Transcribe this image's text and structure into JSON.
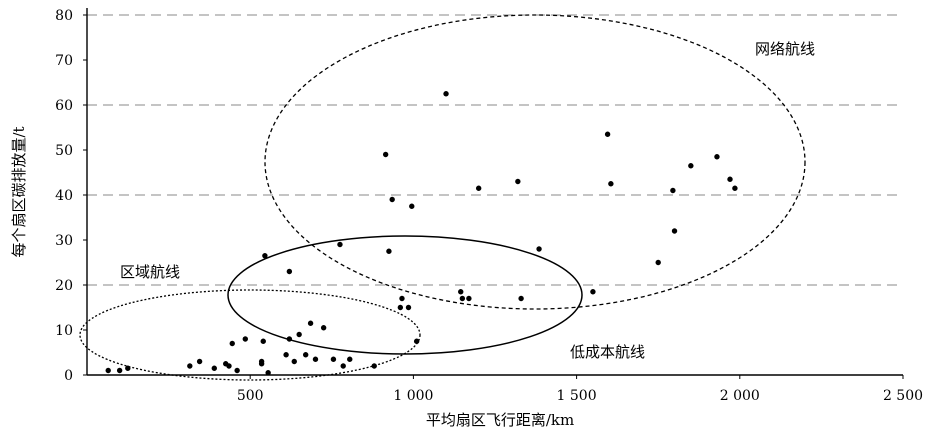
{
  "chart_data": {
    "type": "scatter",
    "xlabel": "平均扇区飞行距离/km",
    "ylabel": "每个扇区碳排放量/t",
    "xlim": [
      0,
      2500
    ],
    "ylim": [
      0,
      80
    ],
    "x_tick_labels": [
      "500",
      "1 000",
      "1 500",
      "2 000",
      "2 500"
    ],
    "y_tick_labels": [
      "0",
      "10",
      "20",
      "30",
      "40",
      "50",
      "60",
      "70",
      "80"
    ],
    "grid": "horizontal dashed at 20, 40, 60, 80",
    "points": [
      {
        "x": 65,
        "y": 1
      },
      {
        "x": 100,
        "y": 1
      },
      {
        "x": 125,
        "y": 1.5
      },
      {
        "x": 315,
        "y": 2
      },
      {
        "x": 345,
        "y": 3
      },
      {
        "x": 390,
        "y": 1.5
      },
      {
        "x": 425,
        "y": 2.5
      },
      {
        "x": 435,
        "y": 2
      },
      {
        "x": 445,
        "y": 7
      },
      {
        "x": 460,
        "y": 1
      },
      {
        "x": 485,
        "y": 8
      },
      {
        "x": 535,
        "y": 2.5
      },
      {
        "x": 535,
        "y": 3
      },
      {
        "x": 540,
        "y": 7.5
      },
      {
        "x": 555,
        "y": 0.5
      },
      {
        "x": 610,
        "y": 4.5
      },
      {
        "x": 620,
        "y": 8
      },
      {
        "x": 635,
        "y": 3
      },
      {
        "x": 650,
        "y": 9
      },
      {
        "x": 670,
        "y": 4.5
      },
      {
        "x": 685,
        "y": 11.5
      },
      {
        "x": 700,
        "y": 3.5
      },
      {
        "x": 725,
        "y": 10.5
      },
      {
        "x": 755,
        "y": 3.5
      },
      {
        "x": 785,
        "y": 2
      },
      {
        "x": 805,
        "y": 3.5
      },
      {
        "x": 880,
        "y": 2
      },
      {
        "x": 545,
        "y": 26.5
      },
      {
        "x": 620,
        "y": 23
      },
      {
        "x": 775,
        "y": 29
      },
      {
        "x": 925,
        "y": 27.5
      },
      {
        "x": 960,
        "y": 15
      },
      {
        "x": 965,
        "y": 17
      },
      {
        "x": 985,
        "y": 15
      },
      {
        "x": 1010,
        "y": 7.5
      },
      {
        "x": 1145,
        "y": 18.5
      },
      {
        "x": 1150,
        "y": 17
      },
      {
        "x": 1170,
        "y": 17
      },
      {
        "x": 1330,
        "y": 17
      },
      {
        "x": 1385,
        "y": 28
      },
      {
        "x": 1550,
        "y": 18.5
      },
      {
        "x": 1750,
        "y": 25
      },
      {
        "x": 915,
        "y": 49
      },
      {
        "x": 935,
        "y": 39
      },
      {
        "x": 995,
        "y": 37.5
      },
      {
        "x": 1100,
        "y": 62.5
      },
      {
        "x": 1200,
        "y": 41.5
      },
      {
        "x": 1320,
        "y": 43
      },
      {
        "x": 1595,
        "y": 53.5
      },
      {
        "x": 1605,
        "y": 42.5
      },
      {
        "x": 1795,
        "y": 41
      },
      {
        "x": 1800,
        "y": 32
      },
      {
        "x": 1850,
        "y": 46.5
      },
      {
        "x": 1930,
        "y": 48.5
      },
      {
        "x": 1970,
        "y": 43.5
      },
      {
        "x": 1985,
        "y": 41.5
      }
    ],
    "annotations": [
      "区域航线",
      "低成本航线",
      "网络航线"
    ]
  }
}
